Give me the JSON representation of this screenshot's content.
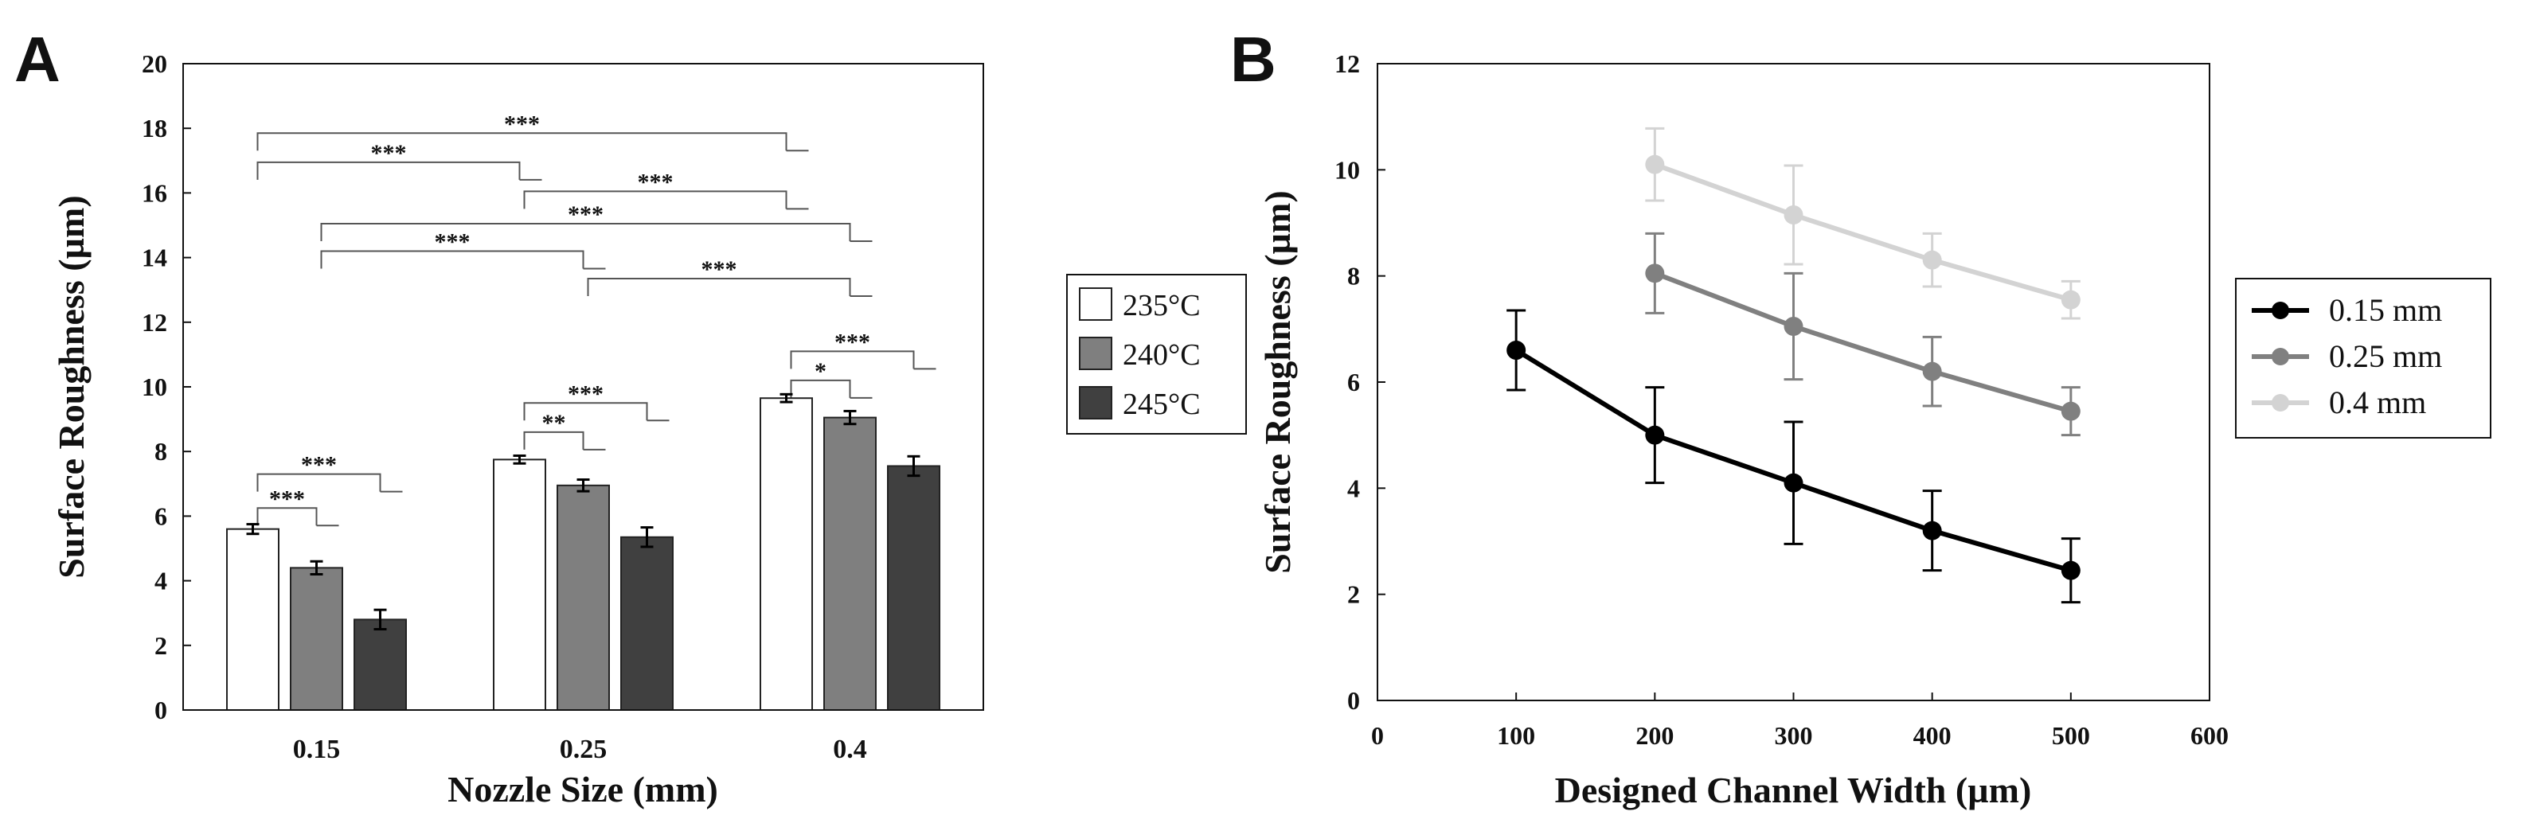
{
  "chart_data": [
    {
      "panel_label": "A",
      "type": "bar",
      "xlabel": "Nozzle Size (mm)",
      "ylabel": "Surface Roughness (µm)",
      "ylim": [
        0,
        20
      ],
      "yticks": [
        0,
        2,
        4,
        6,
        8,
        10,
        12,
        14,
        16,
        18,
        20
      ],
      "grid": false,
      "legend_position": "right",
      "categories": [
        "0.15",
        "0.25",
        "0.4"
      ],
      "series": [
        {
          "name": "235°C",
          "color": "#ffffff",
          "values": [
            5.6,
            7.75,
            9.65
          ],
          "errors": [
            0.15,
            0.12,
            0.12
          ]
        },
        {
          "name": "240°C",
          "color": "#7f7f7f",
          "values": [
            4.4,
            6.95,
            9.05
          ],
          "errors": [
            0.2,
            0.18,
            0.2
          ]
        },
        {
          "name": "245°C",
          "color": "#404040",
          "values": [
            2.8,
            5.35,
            7.55
          ],
          "errors": [
            0.3,
            0.3,
            0.3
          ]
        }
      ],
      "significance": [
        {
          "from_group": 0,
          "from_series": 0,
          "to_group": 2,
          "to_series": 0,
          "y": 17.85,
          "label": "***"
        },
        {
          "from_group": 0,
          "from_series": 0,
          "to_group": 1,
          "to_series": 0,
          "y": 16.95,
          "label": "***"
        },
        {
          "from_group": 1,
          "from_series": 0,
          "to_group": 2,
          "to_series": 0,
          "y": 16.05,
          "label": "***"
        },
        {
          "from_group": 0,
          "from_series": 1,
          "to_group": 2,
          "to_series": 1,
          "y": 15.05,
          "label": "***"
        },
        {
          "from_group": 0,
          "from_series": 1,
          "to_group": 1,
          "to_series": 1,
          "y": 14.2,
          "label": "***"
        },
        {
          "from_group": 1,
          "from_series": 1,
          "to_group": 2,
          "to_series": 1,
          "y": 13.35,
          "label": "***"
        },
        {
          "from_group": 0,
          "from_series": 0,
          "to_group": 0,
          "to_series": 1,
          "y": 6.25,
          "label": "***"
        },
        {
          "from_group": 0,
          "from_series": 0,
          "to_group": 0,
          "to_series": 2,
          "y": 7.3,
          "label": "***"
        },
        {
          "from_group": 1,
          "from_series": 0,
          "to_group": 1,
          "to_series": 1,
          "y": 8.6,
          "label": "**"
        },
        {
          "from_group": 1,
          "from_series": 0,
          "to_group": 1,
          "to_series": 2,
          "y": 9.5,
          "label": "***"
        },
        {
          "from_group": 2,
          "from_series": 0,
          "to_group": 2,
          "to_series": 1,
          "y": 10.2,
          "label": "*"
        },
        {
          "from_group": 2,
          "from_series": 0,
          "to_group": 2,
          "to_series": 2,
          "y": 11.1,
          "label": "***"
        }
      ]
    },
    {
      "panel_label": "B",
      "type": "line",
      "xlabel": "Designed Channel Width (µm)",
      "ylabel": "Surface Roughness (µm)",
      "xlim": [
        0,
        600
      ],
      "ylim": [
        0,
        12
      ],
      "xticks": [
        0,
        100,
        200,
        300,
        400,
        500,
        600
      ],
      "yticks": [
        0,
        2,
        4,
        6,
        8,
        10,
        12
      ],
      "grid": false,
      "legend_position": "right",
      "series": [
        {
          "name": "0.15 mm",
          "color": "#000000",
          "x": [
            100,
            200,
            300,
            400,
            500
          ],
          "y": [
            6.6,
            5.0,
            4.1,
            3.2,
            2.45
          ],
          "errors": [
            0.75,
            0.9,
            1.15,
            0.75,
            0.6
          ]
        },
        {
          "name": "0.25 mm",
          "color": "#808080",
          "x": [
            200,
            300,
            400,
            500
          ],
          "y": [
            8.05,
            7.05,
            6.2,
            5.45
          ],
          "errors": [
            0.75,
            1.0,
            0.65,
            0.45
          ]
        },
        {
          "name": "0.4 mm",
          "color": "#d3d3d3",
          "x": [
            200,
            300,
            400,
            500
          ],
          "y": [
            10.1,
            9.15,
            8.3,
            7.55
          ],
          "errors": [
            0.68,
            0.93,
            0.5,
            0.35
          ]
        }
      ]
    }
  ]
}
